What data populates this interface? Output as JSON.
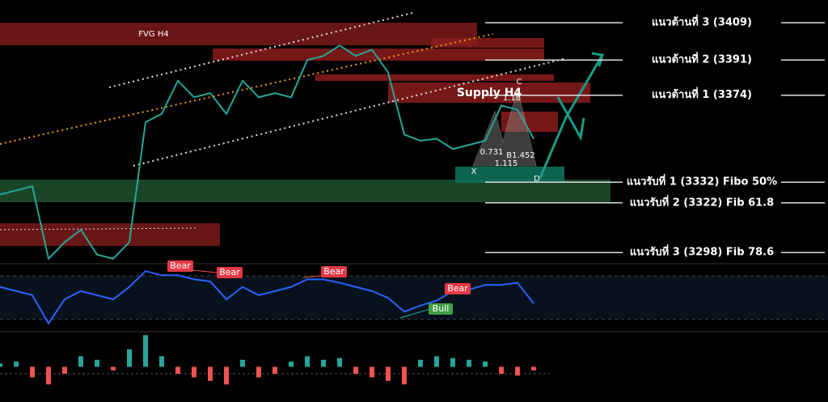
{
  "chart_data": [
    {
      "type": "line",
      "name": "price",
      "color": "#26a69a",
      "values": [
        3326,
        3328,
        3330,
        3295,
        3303,
        3309,
        3297,
        3295,
        3303,
        3361,
        3365,
        3381,
        3373,
        3375,
        3365,
        3381,
        3373,
        3375,
        3373,
        3391,
        3393,
        3398,
        3393,
        3396,
        3385,
        3355,
        3352,
        3353,
        3348,
        3350,
        3352,
        3369,
        3367,
        3353
      ],
      "ylim": [
        3293,
        3420
      ],
      "levels": [
        {
          "label": "แนวต้านที่ 3 (3409)",
          "value": 3409
        },
        {
          "label": "แนวต้านที่ 2 (3391)",
          "value": 3391
        },
        {
          "label": "แนวต้านที่ 1 (3374)",
          "value": 3374
        },
        {
          "label": "แนวรับที่ 1 (3332) Fibo 50%",
          "value": 3332
        },
        {
          "label": "แนวรับที่ 2 (3322) Fib 61.8",
          "value": 3322
        },
        {
          "label": "แนวรับที่ 3 (3298) Fib 78.6",
          "value": 3298
        }
      ],
      "annotations": [
        "FVG H4",
        "Supply H4",
        "X",
        "C",
        "D",
        "0.731",
        "1.18",
        "B1.452",
        "1.115"
      ]
    },
    {
      "type": "line",
      "name": "rsi",
      "color": "#2962ff",
      "values": [
        65,
        59,
        53,
        12,
        47,
        59,
        53,
        47,
        65,
        88,
        82,
        82,
        76,
        73,
        47,
        65,
        53,
        59,
        65,
        76,
        76,
        71,
        65,
        59,
        49,
        29,
        38,
        45,
        59,
        61,
        68,
        68,
        71,
        41
      ],
      "ylim": [
        0,
        100
      ],
      "annotations": [
        "Bear",
        "Bear",
        "Bear",
        "Bear",
        "Bull"
      ]
    },
    {
      "type": "bar",
      "name": "momentum",
      "up_color": "#26a69a",
      "down_color": "#ef5350",
      "values": [
        0.1,
        0.15,
        -0.3,
        -0.5,
        -0.2,
        0.3,
        0.2,
        -0.1,
        0.5,
        0.9,
        0.3,
        -0.2,
        -0.3,
        -0.4,
        -0.5,
        0.2,
        -0.3,
        -0.2,
        0.15,
        0.3,
        0.2,
        0.25,
        -0.2,
        -0.3,
        -0.4,
        -0.5,
        0.2,
        0.3,
        0.25,
        0.2,
        0.15,
        -0.2,
        -0.25,
        -0.1
      ],
      "ylim": [
        -1,
        1
      ]
    }
  ]
}
